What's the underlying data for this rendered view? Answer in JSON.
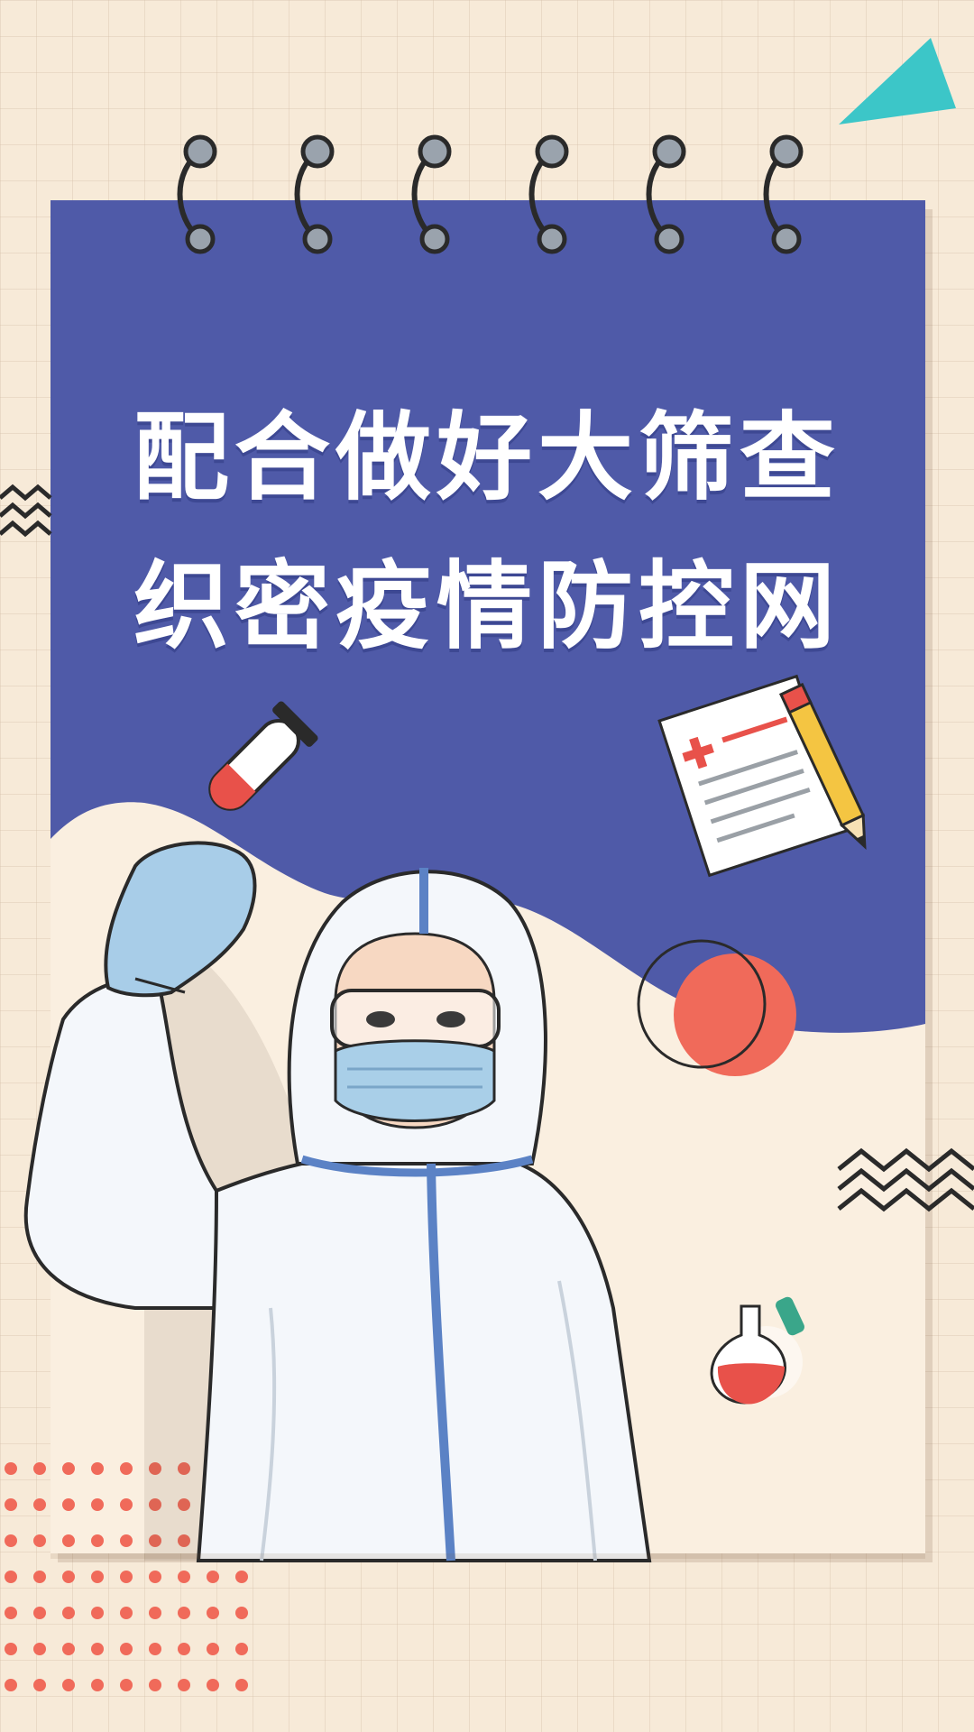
{
  "poster": {
    "headline_line1": "配合做好大筛查",
    "headline_line2": "织密疫情防控网"
  },
  "colors": {
    "background": "#f7ead8",
    "notepad_blue": "#4f5aa8",
    "coral": "#f06a5a",
    "teal": "#3cc6c8",
    "suit_white": "#f4f7fb",
    "suit_stripe": "#5b82c5",
    "glove_blue": "#a8cde8",
    "mask_blue": "#a9cfe8"
  },
  "icons": [
    "test-tube-icon",
    "medical-document-icon",
    "pencil-icon",
    "flask-icon",
    "triangle-decoration",
    "zigzag-decoration",
    "dot-grid-decoration",
    "circle-decoration"
  ]
}
